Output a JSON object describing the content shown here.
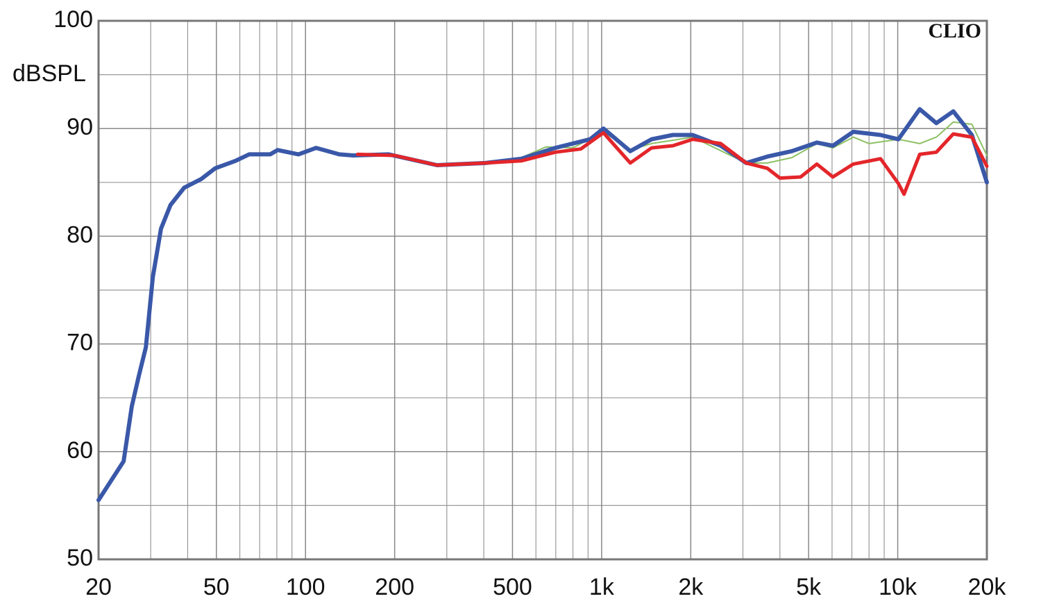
{
  "chart_data": {
    "type": "line",
    "y_label": "dBSPL",
    "annotation": "CLIO",
    "xlim": [
      20,
      20000
    ],
    "xlog": true,
    "xticks": [
      20,
      50,
      100,
      200,
      500,
      {
        "value": 1000,
        "label": "1k"
      },
      {
        "value": 2000,
        "label": "2k"
      },
      {
        "value": 5000,
        "label": "5k"
      },
      {
        "value": 10000,
        "label": "10k"
      },
      {
        "value": 20000,
        "label": "20k"
      }
    ],
    "xminor": [
      30,
      40,
      60,
      70,
      80,
      90,
      300,
      400,
      600,
      700,
      800,
      900,
      3000,
      4000,
      6000,
      7000,
      8000,
      9000
    ],
    "ylim": [
      50,
      100
    ],
    "yticks": [
      50,
      60,
      70,
      80,
      90,
      100
    ],
    "yminor": [
      55,
      65,
      75,
      85,
      95
    ],
    "grid": true,
    "series": [
      {
        "color": "#8cc063",
        "width": 2,
        "x": [
          400,
          536,
          650,
          800,
          1014,
          1250,
          1474,
          2030,
          3080,
          3630,
          4390,
          5330,
          6040,
          7080,
          8000,
          10050,
          11860,
          13500,
          15400,
          17800,
          20000
        ],
        "values": [
          86.8,
          87.3,
          88.3,
          88.2,
          89.7,
          88,
          88.6,
          89.2,
          86.8,
          86.8,
          87.3,
          88.6,
          88.2,
          89.2,
          88.6,
          89,
          88.6,
          89.2,
          90.6,
          90.4,
          87.5
        ]
      },
      {
        "color": "#3a58a8",
        "width": 6,
        "x": [
          20,
          24.3,
          25.9,
          27.4,
          28.9,
          30.5,
          32.5,
          35,
          38.9,
          44.4,
          49.5,
          58,
          64.5,
          76,
          80.5,
          94.7,
          108.6,
          130,
          145,
          191,
          278,
          405,
          536,
          697,
          914,
          1014,
          1250,
          1474,
          1740,
          2030,
          2525,
          3080,
          3630,
          4390,
          5330,
          6040,
          7080,
          8750,
          10050,
          11860,
          13500,
          15400,
          17800,
          20000
        ],
        "values": [
          55.5,
          59.1,
          64.2,
          67.1,
          69.7,
          76.2,
          80.7,
          82.9,
          84.5,
          85.3,
          86.3,
          87,
          87.6,
          87.6,
          88,
          87.6,
          88.2,
          87.6,
          87.5,
          87.6,
          86.6,
          86.8,
          87.2,
          88.2,
          89,
          90,
          87.9,
          89,
          89.4,
          89.4,
          88.4,
          86.8,
          87.4,
          87.9,
          88.7,
          88.4,
          89.7,
          89.4,
          89,
          91.8,
          90.5,
          91.6,
          89.4,
          85
        ]
      },
      {
        "color": "#e3262a",
        "width": 5,
        "x": [
          150,
          200,
          278,
          405,
          536,
          697,
          850,
          1014,
          1250,
          1474,
          1740,
          2030,
          2525,
          3080,
          3630,
          4000,
          4700,
          5330,
          6040,
          7080,
          8750,
          10050,
          10500,
          11860,
          13500,
          15400,
          17800,
          20000
        ],
        "values": [
          87.6,
          87.5,
          86.6,
          86.8,
          87,
          87.8,
          88.1,
          89.6,
          86.8,
          88.2,
          88.4,
          89,
          88.6,
          86.8,
          86.3,
          85.4,
          85.5,
          86.7,
          85.5,
          86.7,
          87.2,
          84.9,
          83.9,
          87.6,
          87.8,
          89.5,
          89.2,
          86.5
        ]
      }
    ]
  }
}
